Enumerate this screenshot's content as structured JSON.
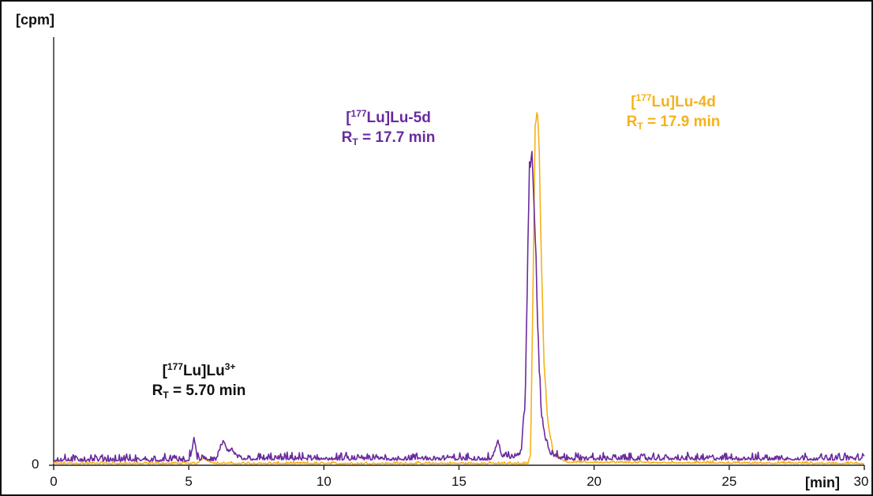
{
  "chart_data": {
    "type": "line",
    "xlabel": "[min]",
    "ylabel": "[cpm]",
    "xlim": [
      0,
      30
    ],
    "xticks": [
      "0",
      "5",
      "10",
      "15",
      "20",
      "25",
      "30"
    ],
    "yticks": [
      "0"
    ],
    "grid": false,
    "colors": {
      "purple": "#6a2b9e",
      "orange": "#f5b21a",
      "axis": "#222222"
    },
    "series": [
      {
        "name": "[177Lu]Lu-5d",
        "color": "#6a2b9e",
        "x": [
          0,
          5.0,
          5.12,
          5.2,
          5.3,
          6.0,
          6.25,
          6.4,
          6.6,
          7.0,
          16.2,
          16.45,
          16.6,
          17.0,
          17.3,
          17.45,
          17.6,
          17.7,
          17.8,
          17.9,
          18.0,
          18.1,
          18.2,
          18.4,
          18.7,
          19.0,
          20.0,
          30.0
        ],
        "y": [
          3,
          3,
          10,
          22,
          4,
          3,
          17,
          12,
          8,
          4,
          4,
          17,
          6,
          5,
          9,
          55,
          235,
          255,
          200,
          125,
          62,
          32,
          18,
          8,
          5,
          4,
          4,
          4
        ],
        "annotation": {
          "superscript": "177",
          "name_prefix": "[",
          "name_mid": "Lu]Lu-5d",
          "rt_sub": "T",
          "rt_value": " = 17.7 min",
          "rt_prefix": "R"
        }
      },
      {
        "name": "[177Lu]Lu-4d",
        "color": "#f5b21a",
        "x": [
          0,
          5.3,
          5.4,
          5.55,
          5.7,
          6.0,
          17.55,
          17.65,
          17.75,
          17.82,
          17.9,
          17.97,
          18.05,
          18.15,
          18.3,
          18.5,
          19.0,
          30.0
        ],
        "y": [
          1,
          1,
          3,
          6,
          3,
          1,
          1,
          8,
          160,
          270,
          285,
          250,
          160,
          80,
          32,
          8,
          2,
          1
        ],
        "annotation": {
          "superscript": "177",
          "name_prefix": "[",
          "name_mid": "Lu]Lu-4d",
          "rt_sub": "T",
          "rt_value": " = 17.9 min",
          "rt_prefix": "R"
        }
      }
    ],
    "annotations": [
      {
        "series": "[177Lu]Lu3+",
        "color": "#111111",
        "prefix": "[",
        "sup": "177",
        "mid": "Lu]Lu",
        "sup2": "3+",
        "rt_prefix": "R",
        "rt_sub": "T",
        "rt_value": " = 5.70 min"
      }
    ]
  }
}
